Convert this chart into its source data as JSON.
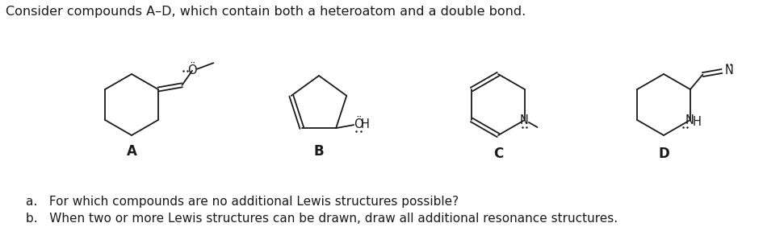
{
  "title": "Consider compounds A–D, which contain both a heteroatom and a double bond.",
  "question_a": "a.   For which compounds are no additional Lewis structures possible?",
  "question_b": "b.   When two or more Lewis structures can be drawn, draw all additional resonance structures.",
  "label_A": "A",
  "label_B": "B",
  "label_C": "C",
  "label_D": "D",
  "bg_color": "#ffffff",
  "line_color": "#1a1a1a",
  "lw": 1.3
}
